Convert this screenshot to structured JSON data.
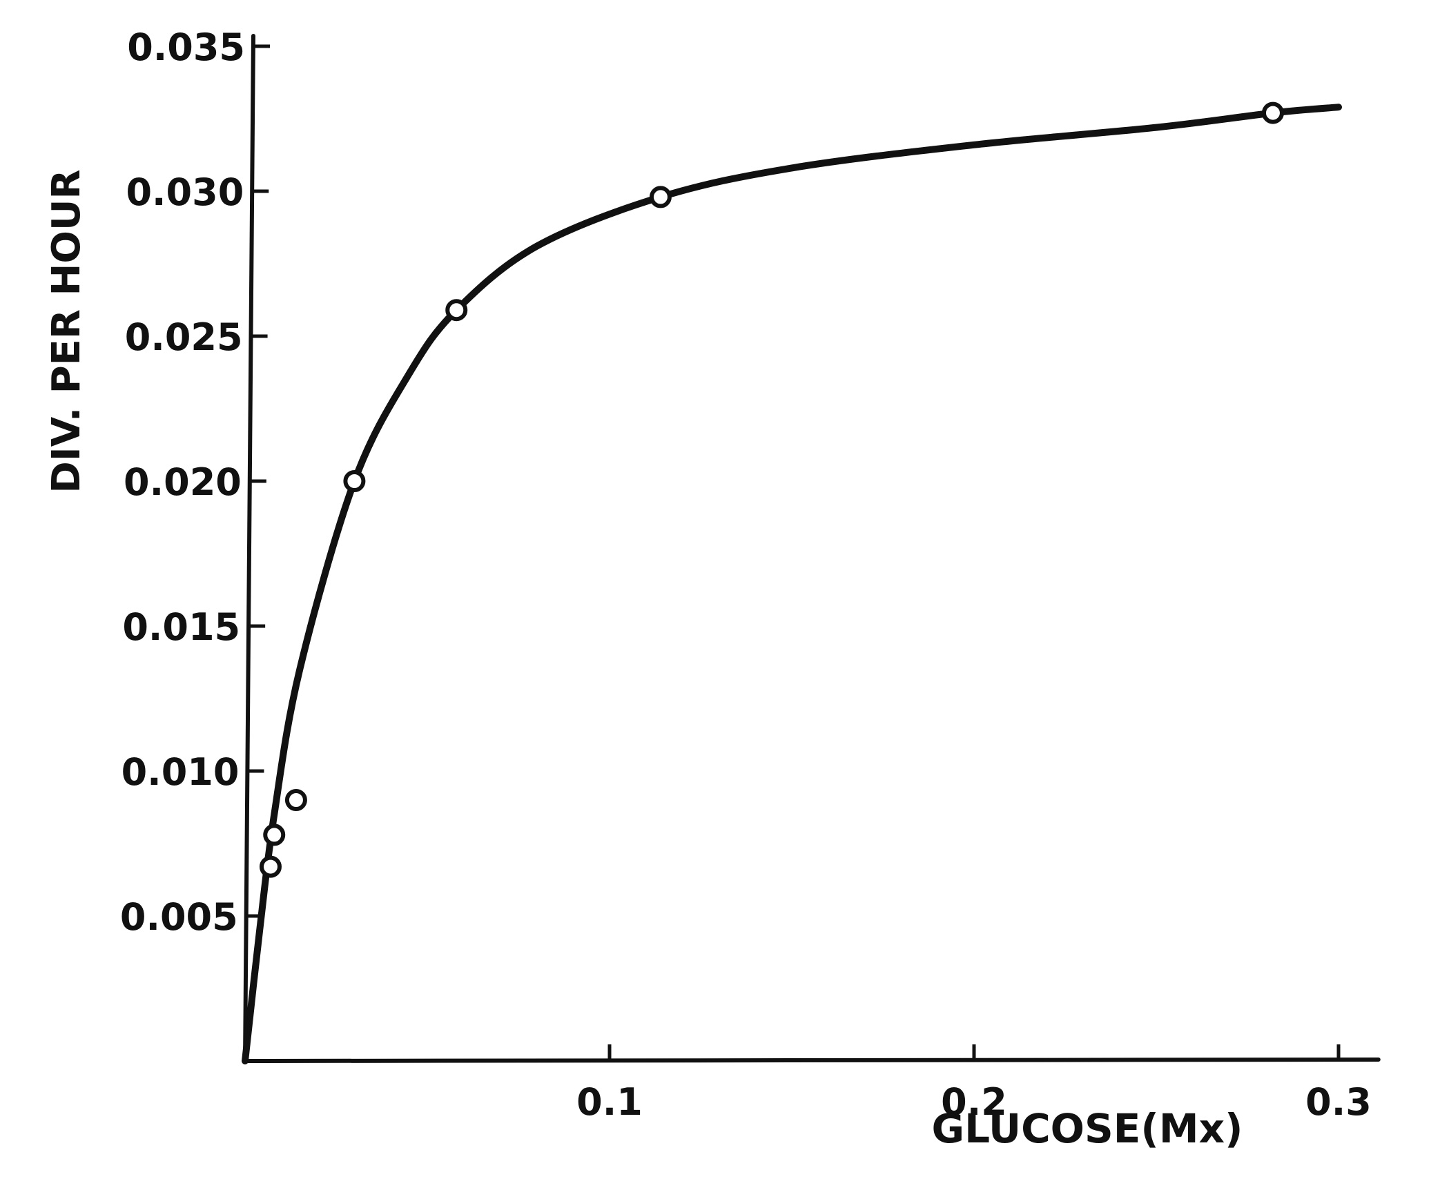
{
  "chart_data": {
    "type": "line",
    "title": "",
    "xlabel": "GLUCOSE(Mx)",
    "ylabel": "DIV. PER HOUR",
    "xlim": [
      0,
      0.31
    ],
    "ylim": [
      0,
      0.035
    ],
    "x_ticks": [
      {
        "value": 0.1,
        "label": "0.1"
      },
      {
        "value": 0.2,
        "label": "0.2"
      },
      {
        "value": 0.3,
        "label": "0.3"
      }
    ],
    "y_ticks": [
      {
        "value": 0.005,
        "label": "0.005"
      },
      {
        "value": 0.01,
        "label": "0.010"
      },
      {
        "value": 0.015,
        "label": "0.015"
      },
      {
        "value": 0.02,
        "label": "0.020"
      },
      {
        "value": 0.025,
        "label": "0.025"
      },
      {
        "value": 0.03,
        "label": "0.030"
      },
      {
        "value": 0.035,
        "label": "0.035"
      }
    ],
    "points": [
      {
        "x": 0.007,
        "y": 0.0067
      },
      {
        "x": 0.008,
        "y": 0.0078
      },
      {
        "x": 0.014,
        "y": 0.009
      },
      {
        "x": 0.03,
        "y": 0.02
      },
      {
        "x": 0.058,
        "y": 0.0259
      },
      {
        "x": 0.114,
        "y": 0.0298
      },
      {
        "x": 0.282,
        "y": 0.0327
      }
    ],
    "curve": [
      {
        "x": 0.0,
        "y": 0.0
      },
      {
        "x": 0.004,
        "y": 0.0045
      },
      {
        "x": 0.008,
        "y": 0.0085
      },
      {
        "x": 0.015,
        "y": 0.0135
      },
      {
        "x": 0.03,
        "y": 0.02
      },
      {
        "x": 0.045,
        "y": 0.0237
      },
      {
        "x": 0.058,
        "y": 0.0259
      },
      {
        "x": 0.08,
        "y": 0.0281
      },
      {
        "x": 0.114,
        "y": 0.0298
      },
      {
        "x": 0.15,
        "y": 0.0308
      },
      {
        "x": 0.2,
        "y": 0.0316
      },
      {
        "x": 0.25,
        "y": 0.0322
      },
      {
        "x": 0.282,
        "y": 0.0327
      },
      {
        "x": 0.3,
        "y": 0.0329
      }
    ],
    "grid": false,
    "legend": "none"
  }
}
